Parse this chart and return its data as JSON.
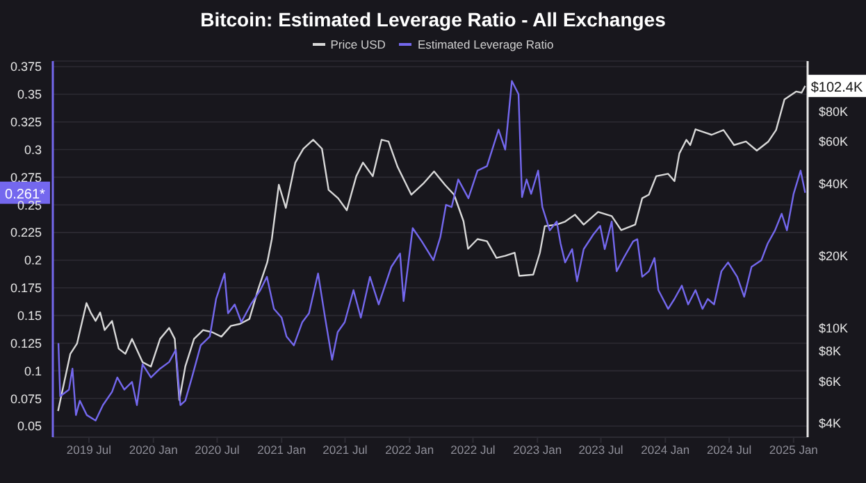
{
  "chart_data": {
    "type": "line",
    "title": "Bitcoin: Estimated Leverage Ratio - All Exchanges",
    "xlim": [
      "2019-03-20",
      "2025-02-10"
    ],
    "xticks": [
      {
        "value": "2019-07",
        "label": "2019 Jul"
      },
      {
        "value": "2020-01",
        "label": "2020 Jan"
      },
      {
        "value": "2020-07",
        "label": "2020 Jul"
      },
      {
        "value": "2021-01",
        "label": "2021 Jan"
      },
      {
        "value": "2021-07",
        "label": "2021 Jul"
      },
      {
        "value": "2022-01",
        "label": "2022 Jan"
      },
      {
        "value": "2022-07",
        "label": "2022 Jul"
      },
      {
        "value": "2023-01",
        "label": "2023 Jan"
      },
      {
        "value": "2023-07",
        "label": "2023 Jul"
      },
      {
        "value": "2024-01",
        "label": "2024 Jan"
      },
      {
        "value": "2024-07",
        "label": "2024 Jul"
      },
      {
        "value": "2025-01",
        "label": "2025 Jan"
      }
    ],
    "ylim": [
      0.04,
      0.38
    ],
    "yticks": [
      0.05,
      0.075,
      0.1,
      0.125,
      0.15,
      0.175,
      0.2,
      0.225,
      0.25,
      0.275,
      0.3,
      0.325,
      0.35,
      0.375
    ],
    "y2lim": [
      3500,
      130000
    ],
    "y2ticks": [
      {
        "value": 4000,
        "label": "$4K"
      },
      {
        "value": 6000,
        "label": "$6K"
      },
      {
        "value": 8000,
        "label": "$8K"
      },
      {
        "value": 10000,
        "label": "$10K"
      },
      {
        "value": 20000,
        "label": "$20K"
      },
      {
        "value": 40000,
        "label": "$40K"
      },
      {
        "value": 60000,
        "label": "$60K"
      },
      {
        "value": 80000,
        "label": "$80K"
      }
    ],
    "log": "y2",
    "grid": "y",
    "legend": "top",
    "marker": "none",
    "annotations": [
      "$102.4K",
      "0.261*"
    ],
    "series": [
      {
        "name": "Price USD",
        "color": "#d9d9d9",
        "axis": "y2",
        "x": [
          "2019-04-04",
          "2019-04-13",
          "2019-05-09",
          "2019-05-28",
          "2019-06-24",
          "2019-07-06",
          "2019-07-20",
          "2019-08-02",
          "2019-08-15",
          "2019-09-05",
          "2019-09-24",
          "2019-10-13",
          "2019-11-01",
          "2019-12-01",
          "2019-12-25",
          "2020-01-20",
          "2020-02-15",
          "2020-03-02",
          "2020-03-15",
          "2020-04-01",
          "2020-04-26",
          "2020-05-22",
          "2020-06-17",
          "2020-07-13",
          "2020-08-09",
          "2020-09-04",
          "2020-10-01",
          "2020-10-26",
          "2020-11-21",
          "2020-12-04",
          "2020-12-24",
          "2021-01-13",
          "2021-02-09",
          "2021-03-04",
          "2021-04-01",
          "2021-04-26",
          "2021-05-15",
          "2021-06-11",
          "2021-07-06",
          "2021-08-02",
          "2021-08-21",
          "2021-09-18",
          "2021-10-13",
          "2021-11-02",
          "2021-11-28",
          "2022-01-06",
          "2022-02-09",
          "2022-03-12",
          "2022-04-12",
          "2022-05-08",
          "2022-06-04",
          "2022-06-17",
          "2022-07-14",
          "2022-08-10",
          "2022-09-06",
          "2022-10-01",
          "2022-10-28",
          "2022-11-10",
          "2022-12-20",
          "2023-01-08",
          "2023-01-22",
          "2023-02-25",
          "2023-03-21",
          "2023-04-18",
          "2023-05-13",
          "2023-06-23",
          "2023-08-01",
          "2023-08-28",
          "2023-10-07",
          "2023-10-27",
          "2023-11-15",
          "2023-12-06",
          "2024-01-09",
          "2024-01-27",
          "2024-02-10",
          "2024-03-01",
          "2024-03-12",
          "2024-03-27",
          "2024-05-12",
          "2024-06-15",
          "2024-07-15",
          "2024-08-18",
          "2024-09-18",
          "2024-10-21",
          "2024-11-12",
          "2024-12-06",
          "2025-01-08",
          "2025-01-24",
          "2025-02-03"
        ],
        "values": [
          4500,
          5200,
          7800,
          8600,
          12700,
          11600,
          10700,
          11600,
          9800,
          10700,
          8200,
          7800,
          9000,
          7200,
          6900,
          9000,
          10000,
          9000,
          5000,
          6900,
          9000,
          9800,
          9600,
          9200,
          10200,
          10400,
          10900,
          14500,
          18800,
          23500,
          39600,
          31700,
          49000,
          56000,
          61000,
          56000,
          37700,
          34800,
          31000,
          43000,
          49000,
          43000,
          61000,
          60000,
          47000,
          36000,
          40000,
          45000,
          39600,
          36000,
          27900,
          21400,
          23500,
          23000,
          19600,
          20000,
          20600,
          16500,
          16700,
          20600,
          26600,
          27000,
          27800,
          29700,
          27000,
          30500,
          29300,
          25600,
          27000,
          34800,
          36000,
          43000,
          44000,
          41000,
          53500,
          61000,
          58000,
          67500,
          64000,
          67000,
          58000,
          60000,
          55000,
          60000,
          67000,
          90000,
          97000,
          96000,
          102400
        ]
      },
      {
        "name": "Estimated Leverage Ratio",
        "color": "#7468ee",
        "x": [
          "2019-04-05",
          "2019-04-10",
          "2019-05-05",
          "2019-05-15",
          "2019-05-25",
          "2019-06-05",
          "2019-06-25",
          "2019-07-20",
          "2019-08-10",
          "2019-09-05",
          "2019-09-20",
          "2019-10-10",
          "2019-11-01",
          "2019-11-15",
          "2019-12-01",
          "2019-12-25",
          "2020-01-20",
          "2020-02-15",
          "2020-03-05",
          "2020-03-18",
          "2020-04-01",
          "2020-04-20",
          "2020-05-15",
          "2020-06-10",
          "2020-06-28",
          "2020-07-22",
          "2020-08-01",
          "2020-08-20",
          "2020-09-08",
          "2020-10-05",
          "2020-11-01",
          "2020-11-20",
          "2020-12-10",
          "2021-01-01",
          "2021-01-15",
          "2021-02-05",
          "2021-03-01",
          "2021-03-20",
          "2021-04-15",
          "2021-05-05",
          "2021-05-25",
          "2021-06-10",
          "2021-06-30",
          "2021-07-25",
          "2021-08-15",
          "2021-09-10",
          "2021-10-05",
          "2021-11-10",
          "2021-12-05",
          "2021-12-15",
          "2022-01-10",
          "2022-02-05",
          "2022-03-10",
          "2022-03-30",
          "2022-04-15",
          "2022-05-01",
          "2022-05-20",
          "2022-06-18",
          "2022-07-14",
          "2022-08-10",
          "2022-09-12",
          "2022-10-01",
          "2022-10-20",
          "2022-11-08",
          "2022-11-18",
          "2022-12-01",
          "2022-12-14",
          "2023-01-03",
          "2023-01-15",
          "2023-02-05",
          "2023-02-25",
          "2023-03-08",
          "2023-03-21",
          "2023-04-10",
          "2023-04-24",
          "2023-05-13",
          "2023-06-09",
          "2023-06-29",
          "2023-07-12",
          "2023-08-01",
          "2023-08-15",
          "2023-09-04",
          "2023-10-01",
          "2023-10-13",
          "2023-10-27",
          "2023-11-15",
          "2023-12-01",
          "2023-12-12",
          "2024-01-09",
          "2024-01-27",
          "2024-02-17",
          "2024-03-06",
          "2024-03-27",
          "2024-04-16",
          "2024-05-01",
          "2024-05-19",
          "2024-06-09",
          "2024-06-28",
          "2024-07-24",
          "2024-08-13",
          "2024-09-03",
          "2024-10-01",
          "2024-10-19",
          "2024-11-09",
          "2024-11-28",
          "2024-12-13",
          "2025-01-01",
          "2025-01-21",
          "2025-02-03"
        ],
        "values": [
          0.125,
          0.077,
          0.083,
          0.102,
          0.06,
          0.073,
          0.06,
          0.055,
          0.069,
          0.081,
          0.094,
          0.083,
          0.09,
          0.069,
          0.106,
          0.094,
          0.102,
          0.108,
          0.119,
          0.069,
          0.073,
          0.094,
          0.123,
          0.131,
          0.165,
          0.188,
          0.152,
          0.16,
          0.144,
          0.16,
          0.173,
          0.185,
          0.156,
          0.148,
          0.131,
          0.123,
          0.144,
          0.152,
          0.188,
          0.148,
          0.11,
          0.135,
          0.144,
          0.173,
          0.148,
          0.185,
          0.16,
          0.194,
          0.206,
          0.163,
          0.229,
          0.217,
          0.2,
          0.221,
          0.25,
          0.248,
          0.273,
          0.256,
          0.281,
          0.285,
          0.318,
          0.3,
          0.362,
          0.35,
          0.257,
          0.273,
          0.26,
          0.281,
          0.248,
          0.227,
          0.235,
          0.215,
          0.198,
          0.21,
          0.181,
          0.21,
          0.223,
          0.231,
          0.21,
          0.235,
          0.19,
          0.202,
          0.217,
          0.219,
          0.185,
          0.19,
          0.202,
          0.173,
          0.156,
          0.165,
          0.177,
          0.16,
          0.173,
          0.156,
          0.165,
          0.16,
          0.19,
          0.198,
          0.185,
          0.167,
          0.194,
          0.2,
          0.215,
          0.227,
          0.242,
          0.227,
          0.26,
          0.281,
          0.261
        ]
      }
    ]
  }
}
